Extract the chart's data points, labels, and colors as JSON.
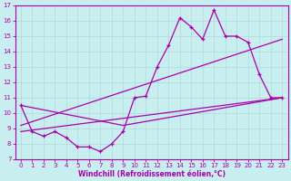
{
  "xlabel": "Windchill (Refroidissement éolien,°C)",
  "bg_color": "#c8eef0",
  "grid_color": "#b0d8dc",
  "line_color": "#aa00aa",
  "spine_color": "#aa00aa",
  "xlim": [
    -0.5,
    23.5
  ],
  "ylim": [
    7,
    17
  ],
  "xticks": [
    0,
    1,
    2,
    3,
    4,
    5,
    6,
    7,
    8,
    9,
    10,
    11,
    12,
    13,
    14,
    15,
    16,
    17,
    18,
    19,
    20,
    21,
    22,
    23
  ],
  "yticks": [
    7,
    8,
    9,
    10,
    11,
    12,
    13,
    14,
    15,
    16,
    17
  ],
  "main_x": [
    0,
    1,
    2,
    3,
    4,
    5,
    6,
    7,
    8,
    9,
    10,
    11,
    12,
    13,
    14,
    15,
    16,
    17,
    18,
    19,
    20,
    21,
    22,
    23
  ],
  "main_y": [
    10.5,
    8.8,
    8.5,
    8.8,
    8.4,
    7.8,
    7.8,
    7.5,
    8.0,
    8.8,
    11.0,
    11.1,
    13.0,
    14.4,
    16.2,
    15.6,
    14.8,
    16.7,
    15.0,
    15.0,
    14.6,
    12.5,
    11.0,
    11.0
  ],
  "trend1_x": [
    0,
    23
  ],
  "trend1_y": [
    8.8,
    11.0
  ],
  "trend2_x": [
    0,
    23
  ],
  "trend2_y": [
    9.2,
    14.8
  ],
  "trend3_x": [
    0,
    9,
    23
  ],
  "trend3_y": [
    10.5,
    9.2,
    11.0
  ]
}
